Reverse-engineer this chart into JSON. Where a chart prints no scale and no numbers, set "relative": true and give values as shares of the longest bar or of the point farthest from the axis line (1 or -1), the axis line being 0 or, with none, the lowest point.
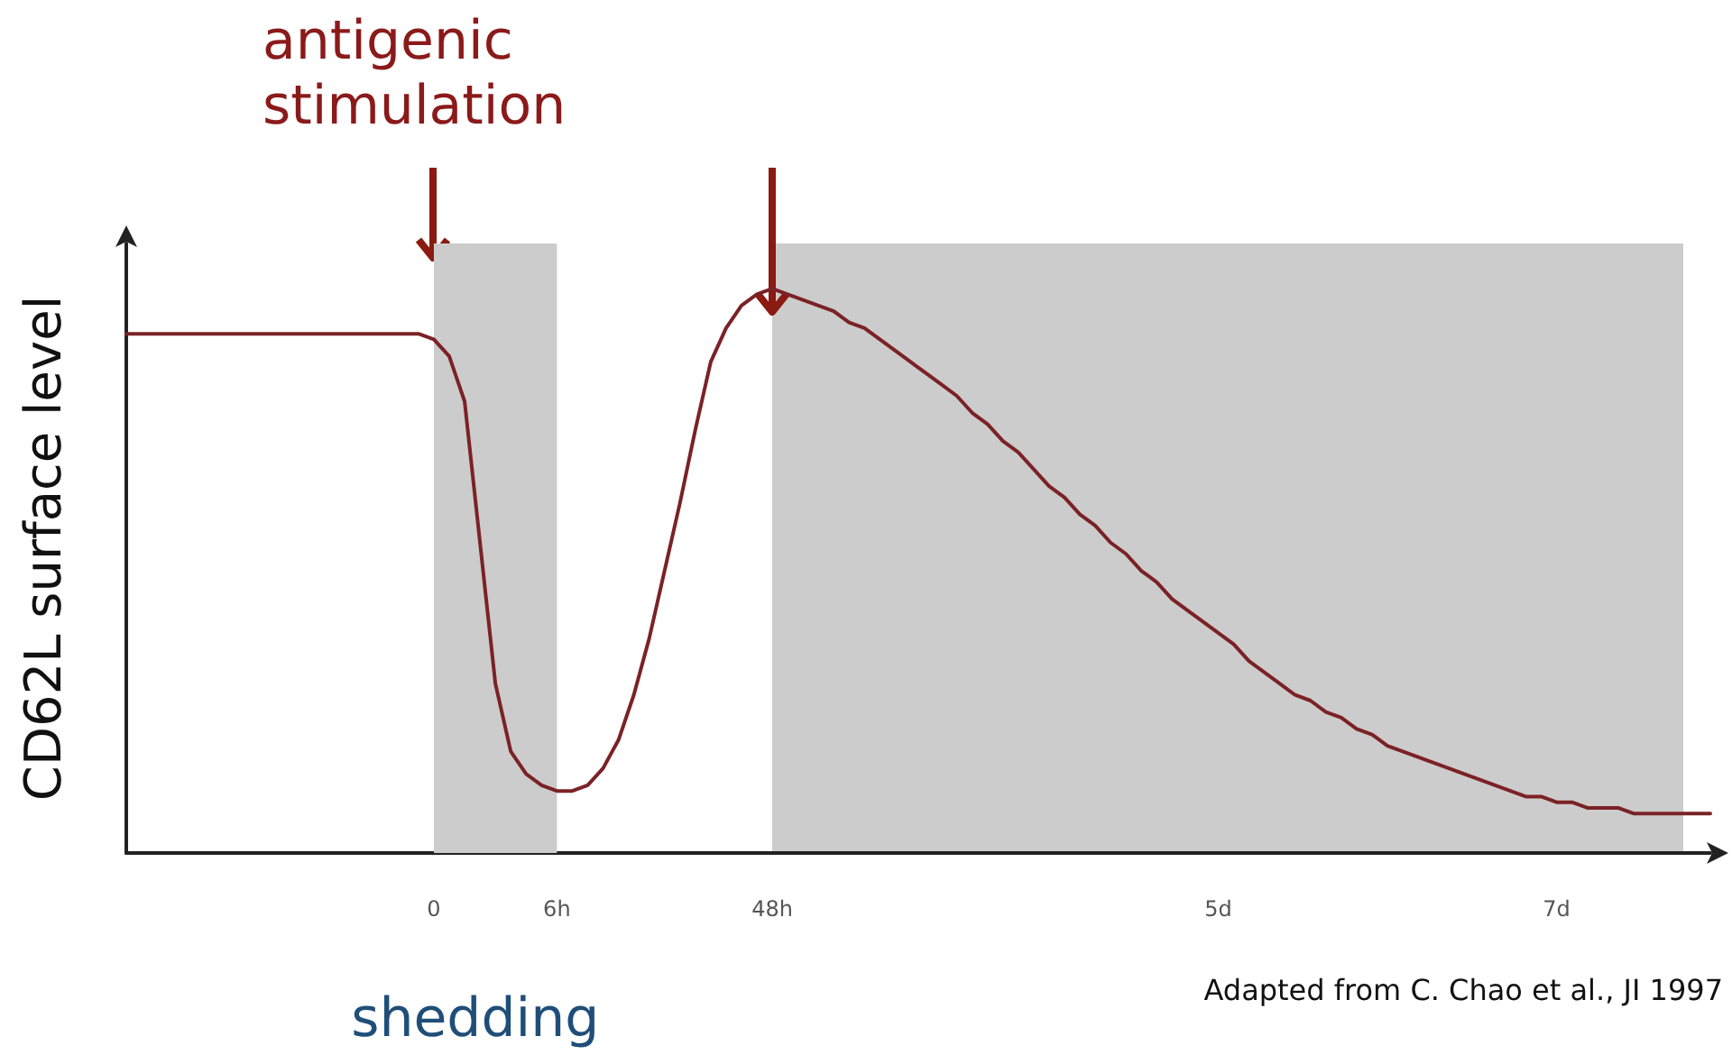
{
  "chart_data": {
    "type": "line",
    "relative": true,
    "ylabel": "CD62L surface level",
    "categories": [
      null,
      null,
      null,
      null,
      null,
      null,
      null,
      null,
      null,
      null,
      null,
      null,
      null,
      null,
      null,
      null,
      null,
      null,
      null,
      null,
      "0",
      null,
      null,
      null,
      null,
      null,
      null,
      null,
      "6h",
      null,
      null,
      null,
      null,
      null,
      null,
      null,
      null,
      null,
      null,
      null,
      null,
      null,
      "48h",
      null,
      null,
      null,
      null,
      null,
      null,
      null,
      null,
      null,
      null,
      null,
      null,
      null,
      null,
      null,
      null,
      null,
      null,
      null,
      null,
      null,
      null,
      null,
      null,
      null,
      null,
      null,
      null,
      "5d",
      null,
      null,
      null,
      null,
      null,
      null,
      null,
      null,
      null,
      null,
      null,
      null,
      null,
      null,
      null,
      null,
      null,
      null,
      null,
      null,
      null,
      "7d",
      null,
      null,
      null,
      null,
      null,
      null,
      null,
      null,
      null,
      null
    ],
    "series": [
      {
        "color": "#7b2226",
        "values": [
          0.92,
          0.92,
          0.92,
          0.92,
          0.92,
          0.92,
          0.92,
          0.92,
          0.92,
          0.92,
          0.92,
          0.92,
          0.92,
          0.92,
          0.92,
          0.92,
          0.92,
          0.92,
          0.92,
          0.92,
          0.91,
          0.88,
          0.8,
          0.55,
          0.3,
          0.18,
          0.14,
          0.12,
          0.11,
          0.11,
          0.12,
          0.15,
          0.2,
          0.28,
          0.38,
          0.5,
          0.62,
          0.75,
          0.87,
          0.93,
          0.97,
          0.99,
          1,
          0.99,
          0.98,
          0.97,
          0.96,
          0.94,
          0.93,
          0.91,
          0.89,
          0.87,
          0.85,
          0.83,
          0.81,
          0.78,
          0.76,
          0.73,
          0.71,
          0.68,
          0.65,
          0.63,
          0.6,
          0.58,
          0.55,
          0.53,
          0.5,
          0.48,
          0.45,
          0.43,
          0.41,
          0.39,
          0.37,
          0.34,
          0.32,
          0.3,
          0.28,
          0.27,
          0.25,
          0.24,
          0.22,
          0.21,
          0.19,
          0.18,
          0.17,
          0.16,
          0.15,
          0.14,
          0.13,
          0.12,
          0.11,
          0.1,
          0.1,
          0.09,
          0.09,
          0.08,
          0.08,
          0.08,
          0.07,
          0.07,
          0.07,
          0.07,
          0.07,
          0.07
        ]
      }
    ],
    "bands": [
      {
        "axis": "x",
        "from": "0",
        "to": "6h",
        "label": "shedding",
        "color": "#cccccc"
      }
    ],
    "annotations": [
      "antigenic stimulation",
      "Adapted from C. Chao et al., JI 1997"
    ],
    "grid": false,
    "marker": "none",
    "line_style": "solid"
  }
}
